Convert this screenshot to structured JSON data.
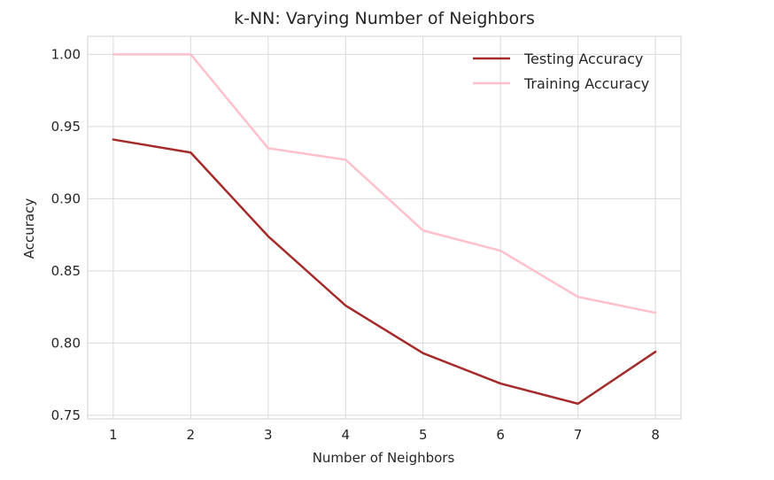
{
  "chart_data": {
    "type": "line",
    "title": "k-NN: Varying Number of Neighbors",
    "xlabel": "Number of Neighbors",
    "ylabel": "Accuracy",
    "x": [
      1,
      2,
      3,
      4,
      5,
      6,
      7,
      8
    ],
    "xlim": [
      0.67,
      8.33
    ],
    "ylim": [
      0.7475,
      1.0125
    ],
    "xticks": [
      "1",
      "2",
      "3",
      "4",
      "5",
      "6",
      "7",
      "8"
    ],
    "yticks": [
      "0.75",
      "0.80",
      "0.85",
      "0.90",
      "0.95",
      "1.00"
    ],
    "grid": true,
    "legend_position": "top-right",
    "series": [
      {
        "name": "Testing Accuracy",
        "color": "#a52a2a",
        "values": [
          0.941,
          0.932,
          0.874,
          0.826,
          0.793,
          0.772,
          0.758,
          0.794
        ]
      },
      {
        "name": "Training Accuracy",
        "color": "#ffc0cb",
        "values": [
          1.0,
          1.0,
          0.935,
          0.927,
          0.878,
          0.864,
          0.832,
          0.821
        ]
      }
    ]
  }
}
